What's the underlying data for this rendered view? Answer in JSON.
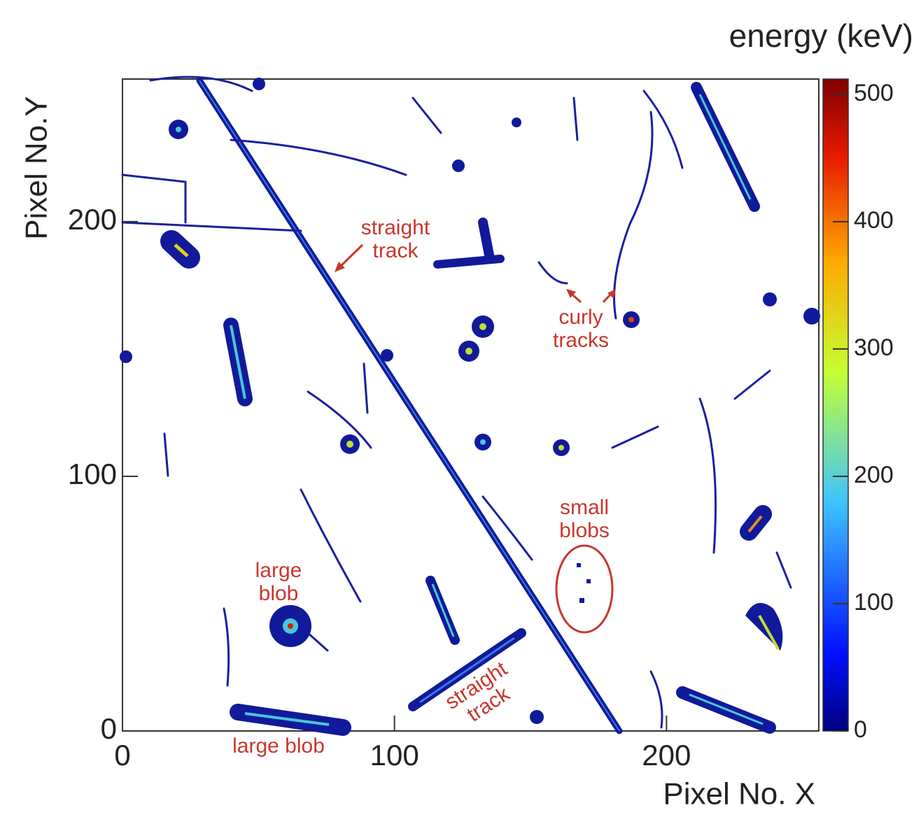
{
  "chart_data": {
    "type": "heatmap",
    "colorbar_title": "energy (keV)",
    "xlabel": "Pixel No. X",
    "ylabel": "Pixel No.Y",
    "xlim": [
      0,
      256
    ],
    "ylim": [
      0,
      256
    ],
    "xticks": [
      0,
      100,
      200
    ],
    "yticks": [
      0,
      100,
      200
    ],
    "zlim": [
      0,
      512
    ],
    "zticks": [
      0,
      100,
      200,
      300,
      400,
      500
    ],
    "annotations": [
      [
        "straight",
        "track"
      ],
      [
        "curly",
        "tracks"
      ],
      [
        "small",
        "blobs"
      ],
      [
        "large",
        "blob"
      ],
      [
        "large blob"
      ],
      [
        "straight",
        "track"
      ]
    ]
  }
}
